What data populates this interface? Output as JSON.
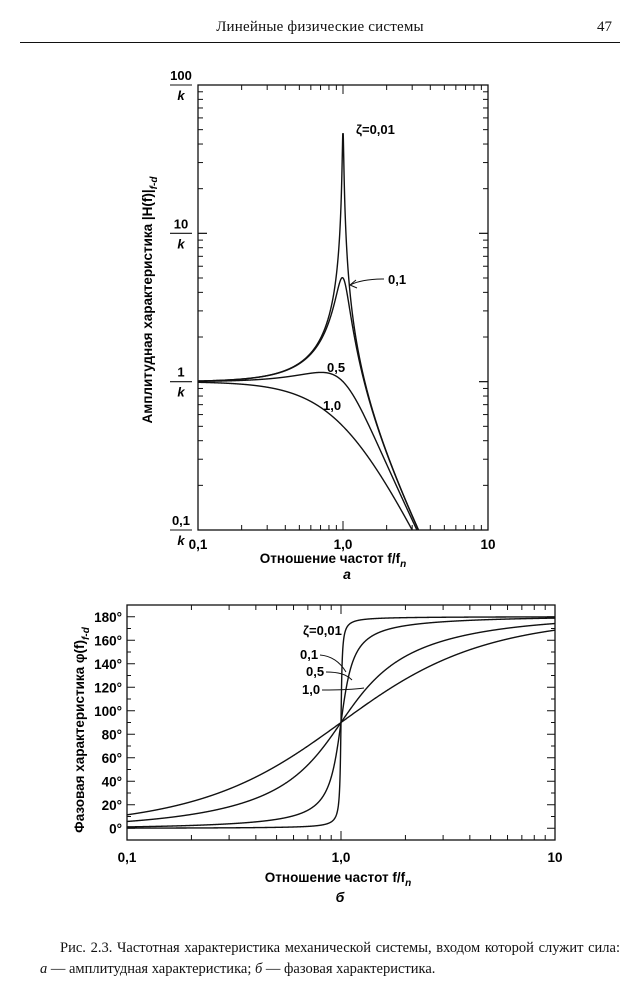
{
  "header": {
    "title": "Линейные физические системы",
    "page_number": "47"
  },
  "chart_data": [
    {
      "type": "line",
      "panel_label": "а",
      "xlabel": "Отношение частот f/f",
      "xlabel_sub": "n",
      "ylabel": "Амплитудная характеристика |H(f)|",
      "ylabel_sub": "f-d",
      "x_scale": "log",
      "y_scale": "log",
      "xlim": [
        0.1,
        10
      ],
      "ylim": [
        0.1,
        100
      ],
      "x_ticks": [
        "0,1",
        "1,0",
        "10"
      ],
      "y_ticks": [
        {
          "value": 100,
          "num": "100",
          "den": "k"
        },
        {
          "value": 10,
          "num": "10",
          "den": "k"
        },
        {
          "value": 1,
          "num": "1",
          "den": "k"
        },
        {
          "value": 0.1,
          "num": "0,1",
          "den": "k"
        }
      ],
      "curve_labels": [
        "ζ=0,01",
        "0,1",
        "0,5",
        "1,0"
      ],
      "series": [
        {
          "name": "ζ=0,01",
          "zeta": 0.01
        },
        {
          "name": "0,1",
          "zeta": 0.1
        },
        {
          "name": "0,5",
          "zeta": 0.5
        },
        {
          "name": "1,0",
          "zeta": 1.0
        }
      ],
      "x": [
        0.1,
        0.2,
        0.5,
        0.8,
        0.9,
        1.0,
        1.1,
        1.2,
        1.5,
        2.0,
        3.0
      ],
      "y_note": "|H| in units of 1/k"
    },
    {
      "type": "line",
      "panel_label": "б",
      "xlabel": "Отношение частот f/f",
      "xlabel_sub": "n",
      "ylabel": "Фазовая характеристика φ(f)",
      "ylabel_sub": "f-d",
      "x_scale": "log",
      "y_scale": "linear",
      "xlim": [
        0.1,
        10
      ],
      "ylim": [
        -10,
        190
      ],
      "x_ticks": [
        "0,1",
        "1,0",
        "10"
      ],
      "y_ticks": [
        {
          "value": 0,
          "label": "0°"
        },
        {
          "value": 20,
          "label": "20°"
        },
        {
          "value": 40,
          "label": "40°"
        },
        {
          "value": 60,
          "label": "60°"
        },
        {
          "value": 80,
          "label": "80°"
        },
        {
          "value": 100,
          "label": "100°"
        },
        {
          "value": 120,
          "label": "120°"
        },
        {
          "value": 140,
          "label": "140°"
        },
        {
          "value": 160,
          "label": "160°"
        },
        {
          "value": 180,
          "label": "180°"
        }
      ],
      "curve_labels": [
        "ζ=0,01",
        "0,1",
        "0,5",
        "1,0"
      ],
      "series": [
        {
          "name": "ζ=0,01",
          "zeta": 0.01
        },
        {
          "name": "0,1",
          "zeta": 0.1
        },
        {
          "name": "0,5",
          "zeta": 0.5
        },
        {
          "name": "1,0",
          "zeta": 1.0
        }
      ]
    }
  ],
  "caption": {
    "fig_number": "Рис. 2.3.",
    "text_1": " Частотная характеристика механической системы, входом которой служит сила: ",
    "label_a": "а",
    "text_2": " — амплитудная характеристика; ",
    "label_b": "б",
    "text_3": " — фазовая характеристика."
  }
}
